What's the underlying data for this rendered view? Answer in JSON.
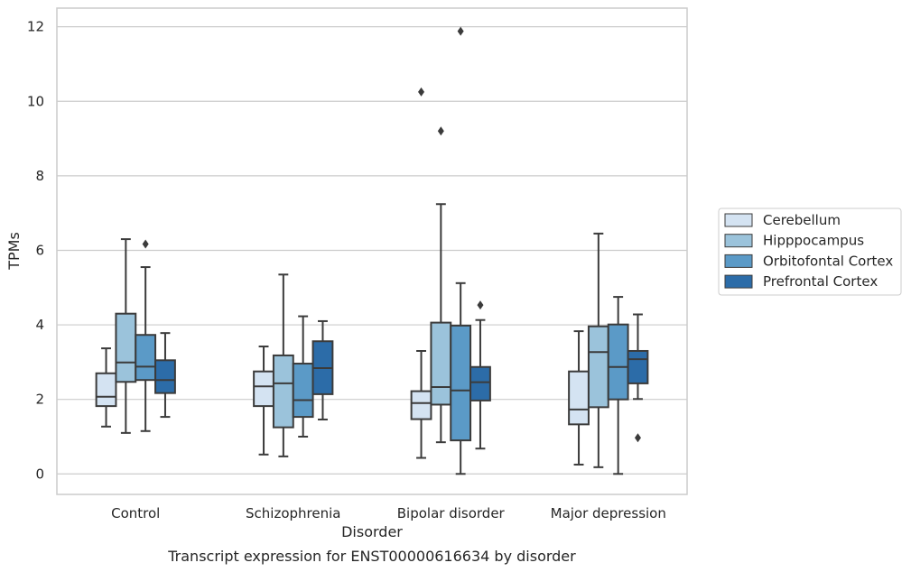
{
  "chart_data": {
    "type": "boxplot",
    "title": "",
    "caption": "Transcript expression for ENST00000616634 by disorder",
    "xlabel": "Disorder",
    "ylabel": "TPMs",
    "ylim": [
      -0.55,
      12.5
    ],
    "yticks": [
      0,
      2,
      4,
      6,
      8,
      10,
      12
    ],
    "grid": "horizontal",
    "legend_position": "right",
    "categories": [
      "Control",
      "Schizophrenia",
      "Bipolar disorder",
      "Major depression"
    ],
    "series": [
      {
        "name": "Cerebellum",
        "color": "#d4e3f2",
        "boxes": [
          {
            "whislo": 1.27,
            "q1": 1.82,
            "med": 2.07,
            "q3": 2.7,
            "whishi": 3.37,
            "fliers": []
          },
          {
            "whislo": 0.52,
            "q1": 1.82,
            "med": 2.35,
            "q3": 2.75,
            "whishi": 3.42,
            "fliers": []
          },
          {
            "whislo": 0.43,
            "q1": 1.47,
            "med": 1.9,
            "q3": 2.22,
            "whishi": 3.3,
            "fliers": [
              10.25
            ]
          },
          {
            "whislo": 0.25,
            "q1": 1.33,
            "med": 1.73,
            "q3": 2.75,
            "whishi": 3.83,
            "fliers": []
          }
        ]
      },
      {
        "name": "Hipppocampus",
        "color": "#9bc3db",
        "boxes": [
          {
            "whislo": 1.1,
            "q1": 2.47,
            "med": 2.99,
            "q3": 4.3,
            "whishi": 6.3,
            "fliers": []
          },
          {
            "whislo": 0.47,
            "q1": 1.25,
            "med": 2.43,
            "q3": 3.18,
            "whishi": 5.35,
            "fliers": []
          },
          {
            "whislo": 0.85,
            "q1": 1.86,
            "med": 2.33,
            "q3": 4.06,
            "whishi": 7.24,
            "fliers": [
              9.2
            ]
          },
          {
            "whislo": 0.18,
            "q1": 1.79,
            "med": 3.27,
            "q3": 3.96,
            "whishi": 6.45,
            "fliers": []
          }
        ]
      },
      {
        "name": "Orbitofontal Cortex",
        "color": "#5b9ac7",
        "boxes": [
          {
            "whislo": 1.15,
            "q1": 2.52,
            "med": 2.88,
            "q3": 3.73,
            "whishi": 5.55,
            "fliers": [
              6.17
            ]
          },
          {
            "whislo": 1.0,
            "q1": 1.53,
            "med": 1.98,
            "q3": 2.96,
            "whishi": 4.23,
            "fliers": []
          },
          {
            "whislo": 0.0,
            "q1": 0.9,
            "med": 2.24,
            "q3": 3.98,
            "whishi": 5.12,
            "fliers": [
              11.88
            ]
          },
          {
            "whislo": 0.0,
            "q1": 2.0,
            "med": 2.87,
            "q3": 4.01,
            "whishi": 4.75,
            "fliers": []
          }
        ]
      },
      {
        "name": "Prefrontal Cortex",
        "color": "#2c6ca8",
        "boxes": [
          {
            "whislo": 1.53,
            "q1": 2.17,
            "med": 2.52,
            "q3": 3.05,
            "whishi": 3.78,
            "fliers": []
          },
          {
            "whislo": 1.46,
            "q1": 2.14,
            "med": 2.84,
            "q3": 3.56,
            "whishi": 4.1,
            "fliers": []
          },
          {
            "whislo": 0.68,
            "q1": 1.97,
            "med": 2.46,
            "q3": 2.87,
            "whishi": 4.13,
            "fliers": [
              4.53
            ]
          },
          {
            "whislo": 2.01,
            "q1": 2.43,
            "med": 3.08,
            "q3": 3.3,
            "whishi": 4.28,
            "fliers": [
              0.97
            ]
          }
        ]
      }
    ]
  }
}
